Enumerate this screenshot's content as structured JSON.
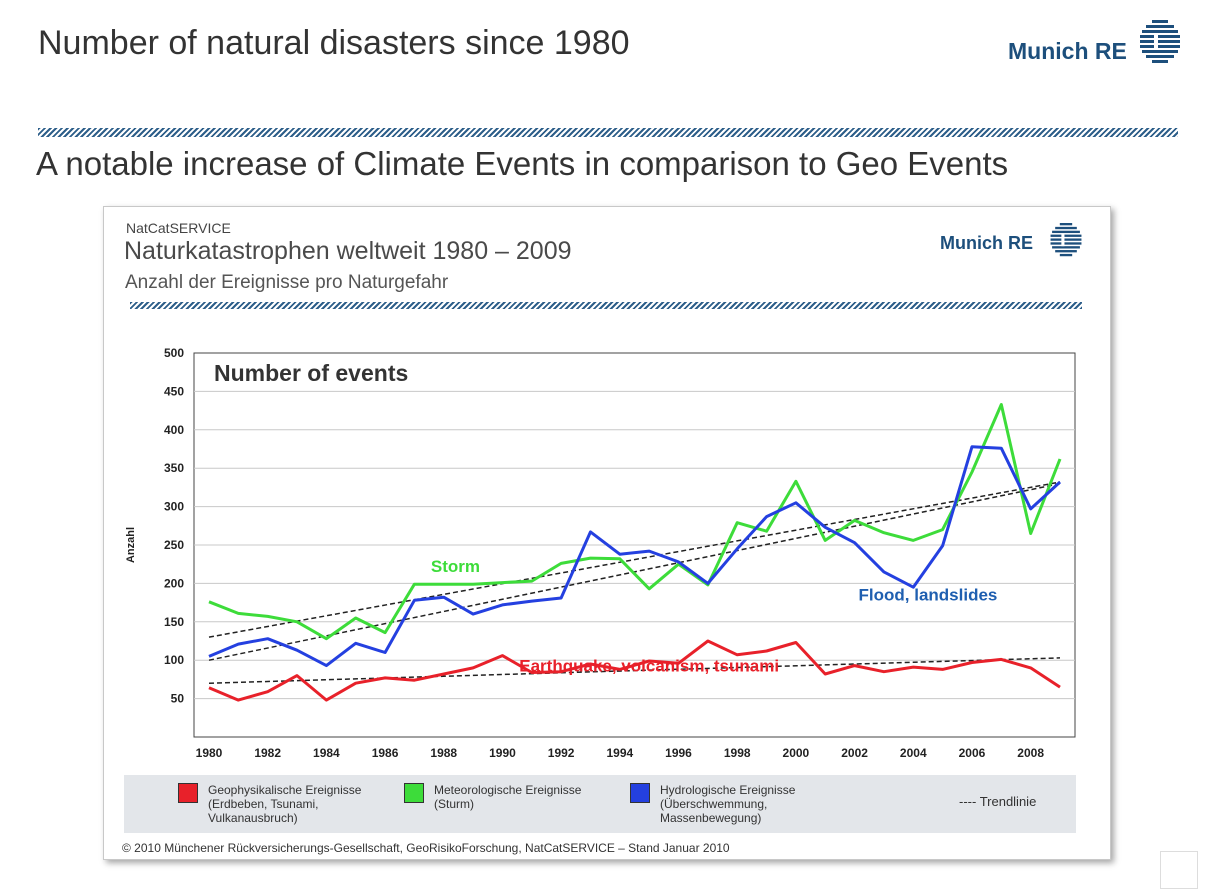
{
  "slide": {
    "title": "Number of natural disasters since 1980",
    "subtitle": "A notable increase of Climate Events in comparison to Geo Events",
    "logo_text": "Munich RE",
    "colors": {
      "brand": "#1d4f7c",
      "text": "#333333"
    }
  },
  "card": {
    "source_label": "NatCatSERVICE",
    "title": "Naturkatastrophen weltweit 1980 – 2009",
    "subtitle": "Anzahl der Ereignisse pro Naturgefahr",
    "logo_text": "Munich RE",
    "copyright": "© 2010 Münchener Rückversicherungs-Gesellschaft, GeoRisikoForschung, NatCatSERVICE  –  Stand Januar 2010"
  },
  "legend": {
    "items": [
      {
        "label": "Geophysikalische Ereignisse",
        "detail": "(Erdbeben, Tsunami, Vulkanausbruch)",
        "color": "#e8212a"
      },
      {
        "label": "Meteorologische Ereignisse",
        "detail": "(Sturm)",
        "color": "#3ddc3a"
      },
      {
        "label": "Hydrologische Ereignisse",
        "detail": "(Überschwemmung, Massenbewegung)",
        "color": "#2440e0"
      }
    ],
    "trend_label": "---- Trendlinie"
  },
  "chart_data": {
    "type": "line",
    "title": "Number of events",
    "ylabel": "Anzahl",
    "xlabel": "",
    "x": [
      1980,
      1981,
      1982,
      1983,
      1984,
      1985,
      1986,
      1987,
      1988,
      1989,
      1990,
      1991,
      1992,
      1993,
      1994,
      1995,
      1996,
      1997,
      1998,
      1999,
      2000,
      2001,
      2002,
      2003,
      2004,
      2005,
      2006,
      2007,
      2008,
      2009
    ],
    "xticks": [
      "1980",
      "1982",
      "1984",
      "1986",
      "1988",
      "1990",
      "1992",
      "1994",
      "1996",
      "1998",
      "2000",
      "2002",
      "2004",
      "2006",
      "2008"
    ],
    "yticks": [
      "50",
      "100",
      "150",
      "200",
      "250",
      "300",
      "350",
      "400",
      "450",
      "500"
    ],
    "ylim": [
      0,
      500
    ],
    "grid": true,
    "series": [
      {
        "name": "Storm",
        "color": "#3ddc3a",
        "values": [
          176,
          161,
          157,
          150,
          128,
          155,
          136,
          199,
          199,
          199,
          201,
          203,
          226,
          233,
          232,
          193,
          225,
          198,
          279,
          268,
          333,
          256,
          282,
          266,
          256,
          270,
          345,
          433,
          265,
          362
        ],
        "trend": [
          130,
          332
        ]
      },
      {
        "name": "Flood, landslides",
        "color": "#2440e0",
        "values": [
          105,
          121,
          128,
          113,
          93,
          122,
          110,
          178,
          182,
          160,
          172,
          177,
          181,
          267,
          238,
          242,
          228,
          200,
          245,
          287,
          305,
          273,
          253,
          215,
          195,
          249,
          378,
          376,
          297,
          332
        ],
        "trend": [
          100,
          330
        ]
      },
      {
        "name": "Earthquake, volcanism, tsunami",
        "color": "#e8212a",
        "values": [
          64,
          48,
          59,
          80,
          48,
          70,
          77,
          74,
          82,
          90,
          106,
          84,
          85,
          95,
          88,
          99,
          96,
          125,
          107,
          112,
          123,
          82,
          93,
          85,
          91,
          88,
          97,
          101,
          90,
          65
        ],
        "trend": [
          70,
          103
        ]
      }
    ],
    "annotations": [
      {
        "text": "Storm",
        "color": "#3ddc3a",
        "x": 1988.4,
        "y": 215
      },
      {
        "text": "Flood, landslides",
        "color": "#1f5fb0",
        "x": 2004.5,
        "y": 178
      },
      {
        "text": "Earthquake, volcanism, tsunami",
        "color": "#e8212a",
        "x": 1995.0,
        "y": 85
      }
    ]
  }
}
